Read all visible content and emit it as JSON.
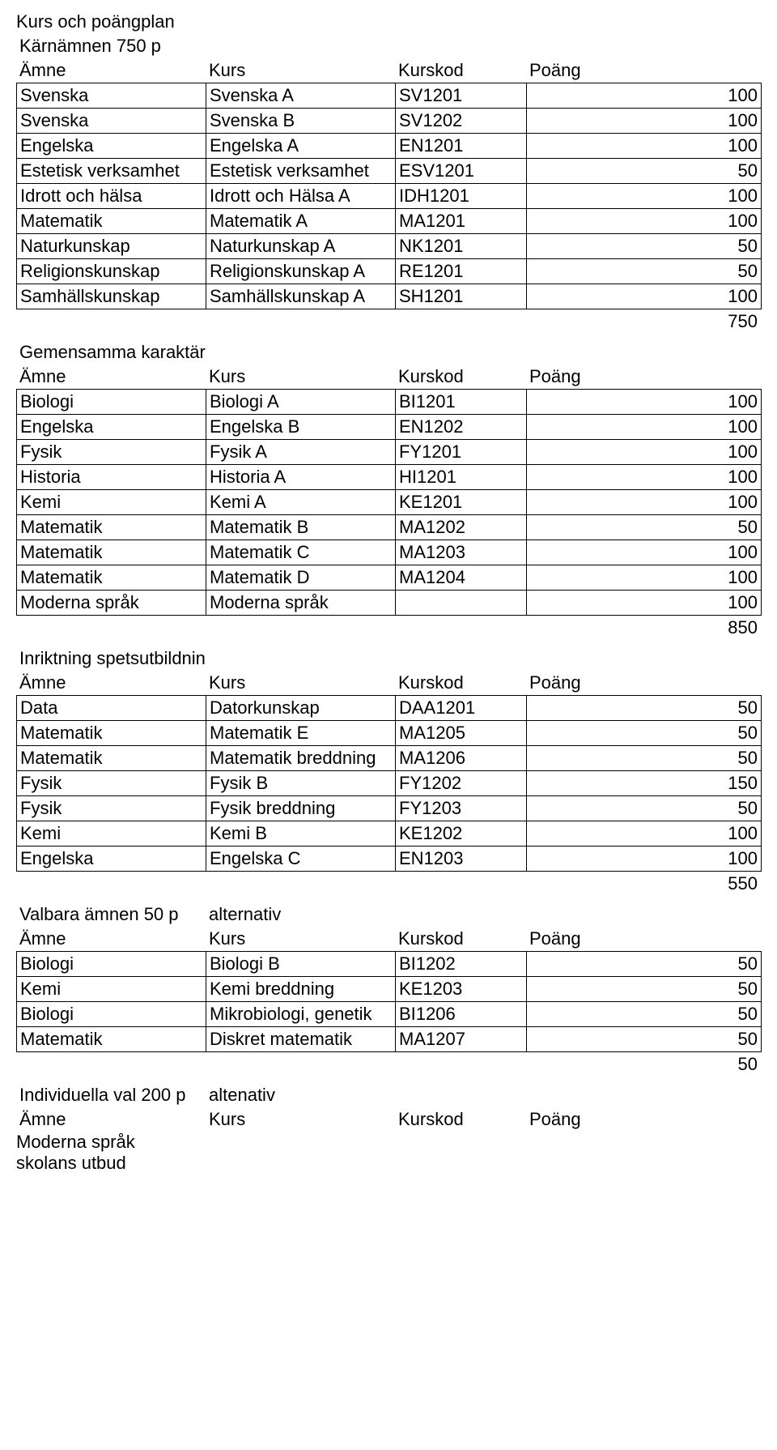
{
  "page_title": "Kurs och poängplan",
  "col_headers": {
    "amne": "Ämne",
    "kurs": "Kurs",
    "kurskod": "Kurskod",
    "poang": "Poäng"
  },
  "sections": [
    {
      "title": "Kärnämnen 750 p",
      "rows": [
        {
          "amne": "Svenska",
          "kurs": "Svenska A",
          "kod": "SV1201",
          "poang": 100
        },
        {
          "amne": "Svenska",
          "kurs": "Svenska B",
          "kod": "SV1202",
          "poang": 100
        },
        {
          "amne": "Engelska",
          "kurs": "Engelska A",
          "kod": "EN1201",
          "poang": 100
        },
        {
          "amne": "Estetisk verksamhet",
          "kurs": "Estetisk verksamhet",
          "kod": "ESV1201",
          "poang": 50
        },
        {
          "amne": "Idrott och hälsa",
          "kurs": "Idrott och Hälsa A",
          "kod": "IDH1201",
          "poang": 100
        },
        {
          "amne": "Matematik",
          "kurs": "Matematik A",
          "kod": "MA1201",
          "poang": 100
        },
        {
          "amne": "Naturkunskap",
          "kurs": "Naturkunskap A",
          "kod": "NK1201",
          "poang": 50
        },
        {
          "amne": "Religionskunskap",
          "kurs": "Religionskunskap A",
          "kod": "RE1201",
          "poang": 50
        },
        {
          "amne": "Samhällskunskap",
          "kurs": "Samhällskunskap A",
          "kod": "SH1201",
          "poang": 100
        }
      ],
      "total": 750
    },
    {
      "title": "Gemensamma karaktärsämnen",
      "rows": [
        {
          "amne": "Biologi",
          "kurs": "Biologi A",
          "kod": "BI1201",
          "poang": 100
        },
        {
          "amne": "Engelska",
          "kurs": "Engelska B",
          "kod": "EN1202",
          "poang": 100
        },
        {
          "amne": "Fysik",
          "kurs": "Fysik A",
          "kod": "FY1201",
          "poang": 100
        },
        {
          "amne": "Historia",
          "kurs": "Historia A",
          "kod": "HI1201",
          "poang": 100
        },
        {
          "amne": "Kemi",
          "kurs": "Kemi A",
          "kod": "KE1201",
          "poang": 100
        },
        {
          "amne": "Matematik",
          "kurs": "Matematik B",
          "kod": "MA1202",
          "poang": 50
        },
        {
          "amne": "Matematik",
          "kurs": "Matematik C",
          "kod": "MA1203",
          "poang": 100
        },
        {
          "amne": "Matematik",
          "kurs": "Matematik D",
          "kod": "MA1204",
          "poang": 100
        },
        {
          "amne": "Moderna språk",
          "kurs": "Moderna språk",
          "kod": "",
          "poang": 100
        }
      ],
      "total": 850
    },
    {
      "title": "Inriktning spetsutbildning fysik",
      "rows": [
        {
          "amne": "Data",
          "kurs": "Datorkunskap",
          "kod": "DAA1201",
          "poang": 50
        },
        {
          "amne": "Matematik",
          "kurs": "Matematik E",
          "kod": "MA1205",
          "poang": 50
        },
        {
          "amne": "Matematik",
          "kurs": "Matematik breddning",
          "kod": "MA1206",
          "poang": 50
        },
        {
          "amne": "Fysik",
          "kurs": "Fysik B",
          "kod": "FY1202",
          "poang": 150
        },
        {
          "amne": "Fysik",
          "kurs": "Fysik breddning",
          "kod": "FY1203",
          "poang": 50
        },
        {
          "amne": "Kemi",
          "kurs": "Kemi B",
          "kod": "KE1202",
          "poang": 100
        },
        {
          "amne": "Engelska",
          "kurs": "Engelska C",
          "kod": "EN1203",
          "poang": 100
        }
      ],
      "total": 550
    },
    {
      "title": "Valbara ämnen 50 p",
      "title_extra": "alternativ",
      "rows": [
        {
          "amne": "Biologi",
          "kurs": "Biologi B",
          "kod": "BI1202",
          "poang": 50
        },
        {
          "amne": "Kemi",
          "kurs": "Kemi breddning",
          "kod": "KE1203",
          "poang": 50
        },
        {
          "amne": "Biologi",
          "kurs": "Mikrobiologi, genetik",
          "kod": "BI1206",
          "poang": 50
        },
        {
          "amne": "Matematik",
          "kurs": "Diskret matematik",
          "kod": "MA1207",
          "poang": 50
        }
      ],
      "total": 50
    }
  ],
  "last_section": {
    "title": "Individuella val 200 p",
    "title_extra": "altenativ",
    "line1": "Moderna språk",
    "line2": "skolans utbud"
  }
}
